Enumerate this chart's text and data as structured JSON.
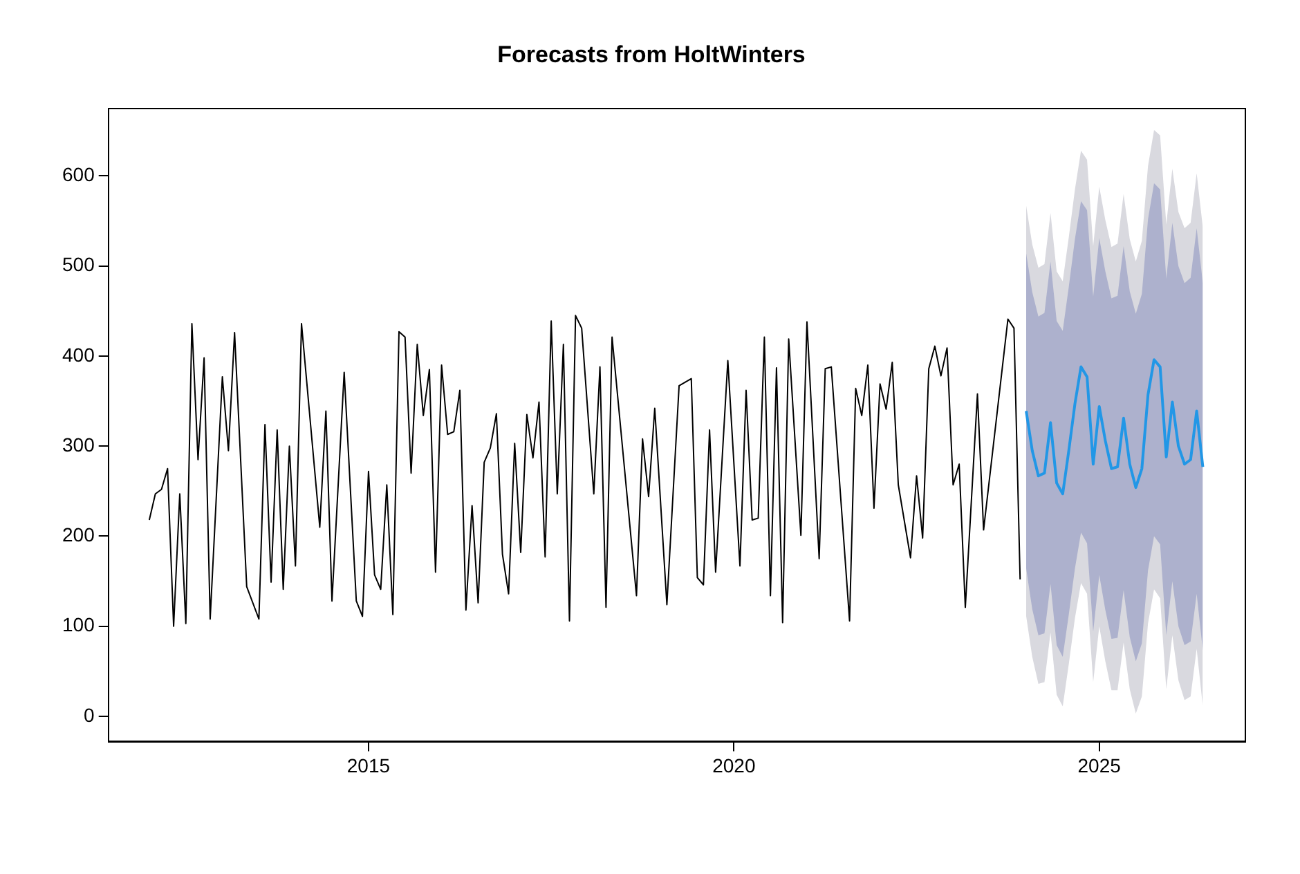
{
  "chart_data": {
    "type": "line",
    "title": "Forecasts from HoltWinters",
    "xlim": [
      2011.44,
      2026.99
    ],
    "ylim": [
      -28,
      675
    ],
    "xticks": [
      2015,
      2020,
      2025
    ],
    "yticks": [
      0,
      100,
      200,
      300,
      400,
      500,
      600
    ],
    "series": [
      {
        "type": "line",
        "color": "#d9d9df",
        "values": [
          null,
          null,
          null,
          null,
          null,
          null,
          null,
          null,
          null,
          null,
          null,
          null,
          null,
          null,
          null,
          null,
          null,
          null,
          null,
          null,
          null,
          null,
          null,
          null,
          null,
          null,
          null,
          null,
          null,
          null
        ],
        "x": [
          2024.0,
          2024.083,
          2024.167,
          2024.25,
          2024.333,
          2024.417,
          2024.5,
          2024.583,
          2024.667,
          2024.75,
          2024.833,
          2024.917,
          2025.0,
          2025.083,
          2025.167,
          2025.25,
          2025.333,
          2025.417,
          2025.5,
          2025.583,
          2025.667,
          2025.75,
          2025.833,
          2025.917,
          2026.0,
          2026.083,
          2026.167,
          2026.25,
          2026.333,
          2026.417
        ],
        "lower": [
          111,
          66,
          36,
          38,
          93,
          24,
          11,
          58,
          109,
          148,
          136,
          38,
          100,
          61,
          29,
          29,
          82,
          30,
          3,
          22,
          103,
          141,
          131,
          30,
          90,
          40,
          18,
          22,
          75,
          11
        ],
        "upper": [
          567,
          524,
          498,
          502,
          559,
          494,
          483,
          532,
          585,
          628,
          618,
          522,
          588,
          551,
          521,
          525,
          580,
          530,
          505,
          528,
          611,
          651,
          645,
          546,
          608,
          560,
          542,
          548,
          603,
          543
        ]
      },
      {
        "type": "line",
        "color": "#adb1cd",
        "values": [
          null,
          null,
          null,
          null,
          null,
          null,
          null,
          null,
          null,
          null,
          null,
          null,
          null,
          null,
          null,
          null,
          null,
          null,
          null,
          null,
          null,
          null,
          null,
          null,
          null,
          null,
          null,
          null,
          null,
          null
        ],
        "x": [
          2024.0,
          2024.083,
          2024.167,
          2024.25,
          2024.333,
          2024.417,
          2024.5,
          2024.583,
          2024.667,
          2024.75,
          2024.833,
          2024.917,
          2025.0,
          2025.083,
          2025.167,
          2025.25,
          2025.333,
          2025.417,
          2025.5,
          2025.583,
          2025.667,
          2025.75,
          2025.833,
          2025.917,
          2026.0,
          2026.083,
          2026.167,
          2026.25,
          2026.333,
          2026.417
        ],
        "lower": [
          164,
          119,
          90,
          92,
          147,
          79,
          66,
          113,
          164,
          204,
          192,
          94,
          157,
          118,
          86,
          87,
          140,
          88,
          61,
          81,
          162,
          200,
          191,
          90,
          150,
          100,
          79,
          83,
          136,
          73
        ],
        "upper": [
          514,
          471,
          444,
          448,
          505,
          439,
          428,
          477,
          530,
          572,
          562,
          466,
          531,
          494,
          464,
          467,
          522,
          472,
          447,
          469,
          552,
          592,
          585,
          486,
          548,
          500,
          481,
          487,
          542,
          481
        ]
      },
      {
        "color": "#000000",
        "x": [
          2012.0,
          2012.083,
          2012.167,
          2012.25,
          2012.333,
          2012.417,
          2012.5,
          2012.583,
          2012.667,
          2012.75,
          2012.833,
          2013.0,
          2013.083,
          2013.167,
          2013.333,
          2013.5,
          2013.583,
          2013.667,
          2013.75,
          2013.833,
          2013.917,
          2014.0,
          2014.083,
          2014.333,
          2014.417,
          2014.5,
          2014.667,
          2014.833,
          2014.917,
          2015.0,
          2015.083,
          2015.167,
          2015.25,
          2015.333,
          2015.417,
          2015.5,
          2015.583,
          2015.667,
          2015.75,
          2015.833,
          2015.917,
          2016.0,
          2016.083,
          2016.167,
          2016.25,
          2016.333,
          2016.417,
          2016.5,
          2016.583,
          2016.667,
          2016.75,
          2016.833,
          2016.917,
          2017.0,
          2017.083,
          2017.167,
          2017.25,
          2017.333,
          2017.417,
          2017.5,
          2017.583,
          2017.667,
          2017.75,
          2017.833,
          2017.917,
          2018.083,
          2018.167,
          2018.25,
          2018.333,
          2018.667,
          2018.75,
          2018.833,
          2018.917,
          2019.083,
          2019.25,
          2019.417,
          2019.5,
          2019.583,
          2019.667,
          2019.75,
          2019.917,
          2020.083,
          2020.167,
          2020.25,
          2020.333,
          2020.417,
          2020.5,
          2020.583,
          2020.667,
          2020.75,
          2020.917,
          2021.0,
          2021.167,
          2021.25,
          2021.333,
          2021.583,
          2021.667,
          2021.75,
          2021.833,
          2021.917,
          2022.0,
          2022.083,
          2022.167,
          2022.25,
          2022.417,
          2022.5,
          2022.583,
          2022.667,
          2022.75,
          2022.833,
          2022.917,
          2023.0,
          2023.083,
          2023.167,
          2023.333,
          2023.417,
          2023.75,
          2023.833,
          2023.917
        ],
        "values": [
          218,
          247,
          252,
          275,
          100,
          247,
          103,
          436,
          285,
          398,
          108,
          377,
          295,
          426,
          144,
          108,
          324,
          149,
          318,
          141,
          300,
          167,
          436,
          210,
          339,
          128,
          382,
          128,
          111,
          272,
          157,
          141,
          257,
          113,
          427,
          421,
          270,
          413,
          334,
          385,
          160,
          390,
          313,
          316,
          362,
          118,
          234,
          126,
          282,
          298,
          336,
          180,
          136,
          303,
          182,
          335,
          287,
          349,
          177,
          439,
          247,
          413,
          106,
          445,
          431,
          247,
          388,
          121,
          421,
          134,
          308,
          244,
          342,
          124,
          367,
          375,
          154,
          146,
          318,
          160,
          395,
          167,
          362,
          218,
          220,
          421,
          134,
          387,
          104,
          419,
          201,
          438,
          175,
          386,
          388,
          106,
          364,
          334,
          390,
          231,
          369,
          341,
          393,
          257,
          176,
          267,
          198,
          386,
          411,
          378,
          409,
          257,
          280,
          121,
          358,
          207,
          441,
          431,
          152
        ]
      },
      {
        "color": "#2297e6",
        "x": [
          2024.0,
          2024.083,
          2024.167,
          2024.25,
          2024.333,
          2024.417,
          2024.5,
          2024.583,
          2024.667,
          2024.75,
          2024.833,
          2024.917,
          2025.0,
          2025.083,
          2025.167,
          2025.25,
          2025.333,
          2025.417,
          2025.5,
          2025.583,
          2025.667,
          2025.75,
          2025.833,
          2025.917,
          2026.0,
          2026.083,
          2026.167,
          2026.25,
          2026.333,
          2026.417
        ],
        "values": [
          339,
          295,
          267,
          270,
          326,
          259,
          247,
          295,
          347,
          388,
          377,
          280,
          344,
          306,
          275,
          277,
          331,
          280,
          254,
          275,
          357,
          396,
          388,
          288,
          349,
          300,
          280,
          285,
          339,
          277
        ]
      }
    ]
  }
}
